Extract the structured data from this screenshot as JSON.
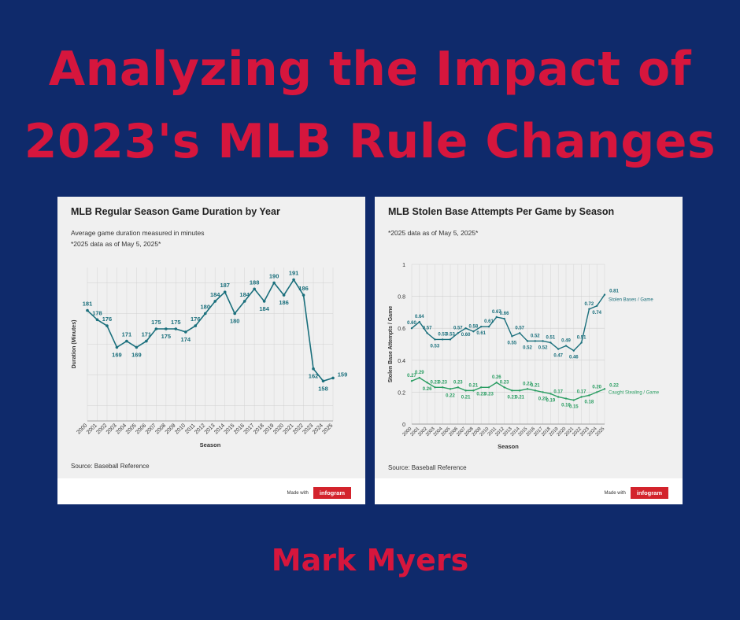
{
  "header": {
    "title_line1": "Analyzing the Impact of",
    "title_line2": "2023's MLB Rule Changes"
  },
  "author": "Mark Myers",
  "footer": {
    "made_with": "Made with",
    "brand": "infogram"
  },
  "colors": {
    "background": "#0f2a6b",
    "title": "#d6163d",
    "line_primary": "#1a6f7c",
    "line_secondary": "#2a9d62"
  },
  "chart_data": [
    {
      "type": "line",
      "title": "MLB Regular Season Game Duration by Year",
      "subtitle": "Average game duration measured in minutes",
      "note": "*2025 data as of May 5, 2025*",
      "source": "Source: Baseball Reference",
      "xlabel": "Season",
      "ylabel": "Duration (Minutes)",
      "ylim": [
        145,
        195
      ],
      "grid": true,
      "x": [
        "2000",
        "2001",
        "2002",
        "2003",
        "2004",
        "2005",
        "2006",
        "2007",
        "2008",
        "2009",
        "2010",
        "2011",
        "2012",
        "2013",
        "2014",
        "2015",
        "2016",
        "2017",
        "2018",
        "2019",
        "2020",
        "2021",
        "2022",
        "2023",
        "2024",
        "2025"
      ],
      "series": [
        {
          "values": [
            181,
            178,
            176,
            169,
            171,
            169,
            171,
            175,
            175,
            175,
            174,
            176,
            180,
            184,
            187,
            180,
            184,
            188,
            184,
            190,
            186,
            191,
            186,
            162,
            158,
            159
          ]
        }
      ]
    },
    {
      "type": "line",
      "title": "MLB Stolen Base Attempts Per Game by Season",
      "note": "*2025 data as of May 5, 2025*",
      "source": "Source: Baseball Reference",
      "xlabel": "Season",
      "ylabel": "Stolen Base Attempts / Game",
      "ylim": [
        0,
        1
      ],
      "yticks": [
        "0",
        "0.2",
        "0.4",
        "0.6",
        "0.8",
        "1"
      ],
      "grid": true,
      "x": [
        "2000",
        "2001",
        "2002",
        "2003",
        "2004",
        "2005",
        "2006",
        "2007",
        "2008",
        "2009",
        "2010",
        "2011",
        "2012",
        "2013",
        "2014",
        "2015",
        "2016",
        "2017",
        "2018",
        "2019",
        "2020",
        "2021",
        "2022",
        "2023",
        "2024",
        "2025"
      ],
      "series": [
        {
          "name": "Stolen Bases / Game",
          "values": [
            0.6,
            0.64,
            0.57,
            0.53,
            0.53,
            0.53,
            0.57,
            0.6,
            0.58,
            0.61,
            0.61,
            0.67,
            0.66,
            0.55,
            0.57,
            0.52,
            0.52,
            0.52,
            0.51,
            0.47,
            0.49,
            0.46,
            0.51,
            0.72,
            0.74,
            0.81
          ]
        },
        {
          "name": "Caught Stealing / Game",
          "values": [
            0.27,
            0.29,
            0.26,
            0.23,
            0.23,
            0.22,
            0.23,
            0.21,
            0.21,
            0.23,
            0.23,
            0.26,
            0.23,
            0.21,
            0.21,
            0.22,
            0.21,
            0.2,
            0.19,
            0.17,
            0.16,
            0.15,
            0.17,
            0.18,
            0.2,
            0.22
          ]
        }
      ]
    }
  ]
}
